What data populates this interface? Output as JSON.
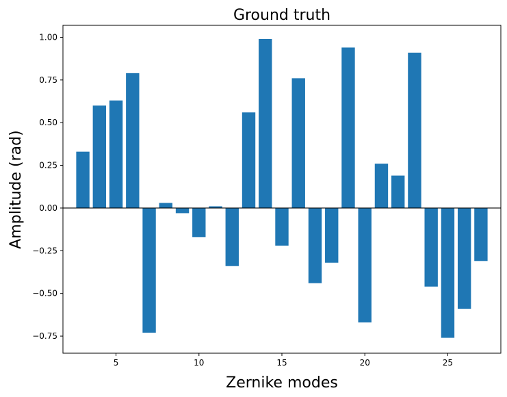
{
  "chart_data": {
    "type": "bar",
    "title": "Ground truth",
    "xlabel": "Zernike modes",
    "ylabel": "Amplitude (rad)",
    "x": [
      3,
      4,
      5,
      6,
      7,
      8,
      9,
      10,
      11,
      12,
      13,
      14,
      15,
      16,
      17,
      18,
      19,
      20,
      21,
      22,
      23,
      24,
      25,
      26,
      27
    ],
    "values": [
      0.33,
      0.6,
      0.63,
      0.79,
      -0.73,
      0.03,
      -0.03,
      -0.17,
      0.01,
      -0.34,
      0.56,
      0.99,
      -0.22,
      0.76,
      -0.44,
      -0.32,
      0.94,
      -0.67,
      0.26,
      0.19,
      0.91,
      -0.46,
      -0.76,
      -0.59,
      -0.31
    ],
    "xlim": [
      1.8,
      28.2
    ],
    "ylim": [
      -0.85,
      1.07
    ],
    "xticks": [
      5,
      10,
      15,
      20,
      25
    ],
    "xtick_labels": [
      "5",
      "10",
      "15",
      "20",
      "25"
    ],
    "yticks": [
      -0.75,
      -0.5,
      -0.25,
      0.0,
      0.25,
      0.5,
      0.75,
      1.0
    ],
    "ytick_labels": [
      "−0.75",
      "−0.50",
      "−0.25",
      "0.00",
      "0.25",
      "0.50",
      "0.75",
      "1.00"
    ],
    "zero_line": true,
    "grid": false,
    "bar_color": "#1f77b4"
  }
}
